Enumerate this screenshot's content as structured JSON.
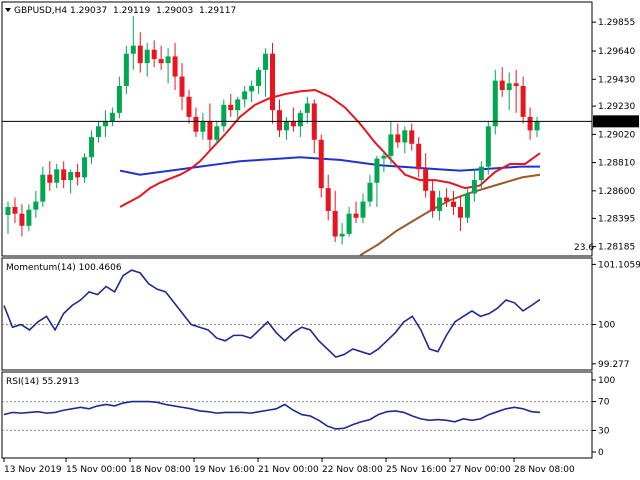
{
  "header": {
    "symbol": "GBPUSD,H4",
    "ohlc": [
      "1.29037",
      "1.29119",
      "1.29003",
      "1.29117"
    ]
  },
  "colors": {
    "bull": "#00a651",
    "bear": "#e8141f",
    "ma_fast": "#e8141f",
    "ma_mid": "#2233cc",
    "ma_slow": "#9b5a2a",
    "osc_line": "#1f2a8c",
    "price_line": "#000000",
    "current_tag_bg": "#000000"
  },
  "chart_data": [
    {
      "type": "candlestick",
      "name": "price",
      "ylim": [
        1.2813,
        1.2999
      ],
      "y_ticks": [
        "1.29855",
        "1.29640",
        "1.29430",
        "1.29230",
        "1.29020",
        "1.28810",
        "1.28600",
        "1.28395",
        "1.28185"
      ],
      "y_tick_values": [
        1.29855,
        1.2964,
        1.2943,
        1.2923,
        1.2902,
        1.2881,
        1.286,
        1.28395,
        1.28185
      ],
      "current_price": "1.29117",
      "current_value": 1.29117,
      "corner_label": "23.6",
      "candles": [
        [
          1.2842,
          1.2852,
          1.2828,
          1.2848
        ],
        [
          1.2848,
          1.2855,
          1.2836,
          1.2843
        ],
        [
          1.2843,
          1.285,
          1.2826,
          1.2834
        ],
        [
          1.2834,
          1.285,
          1.283,
          1.2846
        ],
        [
          1.2846,
          1.286,
          1.284,
          1.2852
        ],
        [
          1.2852,
          1.2878,
          1.2848,
          1.2872
        ],
        [
          1.2872,
          1.2882,
          1.286,
          1.2866
        ],
        [
          1.2866,
          1.288,
          1.2862,
          1.2876
        ],
        [
          1.2876,
          1.2882,
          1.2862,
          1.2868
        ],
        [
          1.2868,
          1.2876,
          1.2858,
          1.2874
        ],
        [
          1.2874,
          1.288,
          1.2864,
          1.287
        ],
        [
          1.287,
          1.2888,
          1.2866,
          1.2885
        ],
        [
          1.2885,
          1.2905,
          1.288,
          1.29
        ],
        [
          1.29,
          1.2912,
          1.2896,
          1.2908
        ],
        [
          1.2908,
          1.292,
          1.29,
          1.2912
        ],
        [
          1.2912,
          1.2922,
          1.2908,
          1.2918
        ],
        [
          1.2918,
          1.2945,
          1.2914,
          1.2938
        ],
        [
          1.2938,
          1.2968,
          1.2932,
          1.2962
        ],
        [
          1.2962,
          1.299,
          1.295,
          1.2968
        ],
        [
          1.2968,
          1.2978,
          1.2948,
          1.2955
        ],
        [
          1.2955,
          1.297,
          1.2945,
          1.2965
        ],
        [
          1.2965,
          1.2972,
          1.2952,
          1.2958
        ],
        [
          1.2958,
          1.2968,
          1.295,
          1.2955
        ],
        [
          1.2955,
          1.2966,
          1.294,
          1.296
        ],
        [
          1.296,
          1.297,
          1.2935,
          1.2945
        ],
        [
          1.2945,
          1.2955,
          1.292,
          1.293
        ],
        [
          1.293,
          1.2935,
          1.291,
          1.2915
        ],
        [
          1.2915,
          1.2922,
          1.29,
          1.2904
        ],
        [
          1.2904,
          1.2918,
          1.2898,
          1.2912
        ],
        [
          1.2912,
          1.2925,
          1.289,
          1.2898
        ],
        [
          1.2898,
          1.2912,
          1.2895,
          1.2908
        ],
        [
          1.2908,
          1.2928,
          1.2904,
          1.2924
        ],
        [
          1.2924,
          1.2932,
          1.2915,
          1.292
        ],
        [
          1.292,
          1.293,
          1.2912,
          1.2928
        ],
        [
          1.2928,
          1.2938,
          1.2922,
          1.2934
        ],
        [
          1.2934,
          1.2942,
          1.2926,
          1.2938
        ],
        [
          1.2938,
          1.2952,
          1.2932,
          1.295
        ],
        [
          1.295,
          1.2966,
          1.293,
          1.2962
        ],
        [
          1.2962,
          1.297,
          1.291,
          1.292
        ],
        [
          1.292,
          1.2928,
          1.29,
          1.2905
        ],
        [
          1.2905,
          1.2915,
          1.2898,
          1.2912
        ],
        [
          1.2912,
          1.2922,
          1.2904,
          1.2908
        ],
        [
          1.2908,
          1.292,
          1.29,
          1.2918
        ],
        [
          1.2918,
          1.293,
          1.291,
          1.2925
        ],
        [
          1.2925,
          1.2928,
          1.2888,
          1.2898
        ],
        [
          1.2898,
          1.2902,
          1.2855,
          1.2862
        ],
        [
          1.2862,
          1.2872,
          1.2838,
          1.2845
        ],
        [
          1.2845,
          1.286,
          1.2822,
          1.2826
        ],
        [
          1.2826,
          1.2836,
          1.282,
          1.2828
        ],
        [
          1.2828,
          1.2848,
          1.2826,
          1.2843
        ],
        [
          1.2843,
          1.2852,
          1.2836,
          1.284
        ],
        [
          1.284,
          1.2858,
          1.2836,
          1.2852
        ],
        [
          1.2852,
          1.2872,
          1.2848,
          1.2866
        ],
        [
          1.2866,
          1.2886,
          1.2848,
          1.2884
        ],
        [
          1.2884,
          1.289,
          1.2874,
          1.2886
        ],
        [
          1.2886,
          1.2912,
          1.288,
          1.2902
        ],
        [
          1.2902,
          1.291,
          1.2892,
          1.2896
        ],
        [
          1.2896,
          1.2908,
          1.2888,
          1.2905
        ],
        [
          1.2905,
          1.291,
          1.289,
          1.2895
        ],
        [
          1.2895,
          1.29,
          1.287,
          1.2876
        ],
        [
          1.2876,
          1.2888,
          1.2855,
          1.286
        ],
        [
          1.286,
          1.2868,
          1.284,
          1.2845
        ],
        [
          1.2845,
          1.286,
          1.2838,
          1.2855
        ],
        [
          1.2855,
          1.2862,
          1.2848,
          1.2852
        ],
        [
          1.2852,
          1.286,
          1.2842,
          1.2848
        ],
        [
          1.2848,
          1.2856,
          1.283,
          1.284
        ],
        [
          1.284,
          1.2862,
          1.2836,
          1.2858
        ],
        [
          1.2858,
          1.2875,
          1.2852,
          1.2868
        ],
        [
          1.2868,
          1.2882,
          1.2862,
          1.2878
        ],
        [
          1.2878,
          1.2912,
          1.2872,
          1.2908
        ],
        [
          1.2908,
          1.295,
          1.2902,
          1.2942
        ],
        [
          1.2942,
          1.2952,
          1.293,
          1.2935
        ],
        [
          1.2935,
          1.2948,
          1.292,
          1.294
        ],
        [
          1.294,
          1.295,
          1.2918,
          1.2938
        ],
        [
          1.2938,
          1.2945,
          1.291,
          1.2915
        ],
        [
          1.2915,
          1.2922,
          1.2898,
          1.2905
        ],
        [
          1.2905,
          1.2915,
          1.29,
          1.29117
        ]
      ],
      "ma_fast": [
        1.2848,
        1.2852,
        1.2856,
        1.2862,
        1.2866,
        1.2869,
        1.2872,
        1.2876,
        1.2882,
        1.289,
        1.2902,
        1.2915,
        1.2924,
        1.2929,
        1.2932,
        1.2934,
        1.2935,
        1.293,
        1.2922,
        1.291,
        1.2896,
        1.2884,
        1.2872,
        1.2868,
        1.2868,
        1.2866,
        1.2862,
        1.2864,
        1.2874,
        1.288,
        1.288,
        1.2888
      ],
      "ma_fast_x": [
        60,
        70,
        80,
        90,
        100,
        110,
        120,
        130,
        140,
        150,
        165,
        180,
        195,
        210,
        225,
        240,
        255,
        270,
        285,
        300,
        315,
        330,
        345,
        360,
        375,
        390,
        405,
        420,
        435,
        450,
        465,
        480
      ],
      "ma_mid": [
        1.2875,
        1.2872,
        1.2874,
        1.2876,
        1.2878,
        1.288,
        1.2882,
        1.2883,
        1.2884,
        1.2885,
        1.2884,
        1.2883,
        1.2881,
        1.2879,
        1.2878,
        1.2877,
        1.2876,
        1.2875,
        1.2876,
        1.2877,
        1.2878,
        1.2878
      ],
      "ma_mid_x": [
        0,
        20,
        40,
        60,
        80,
        100,
        120,
        140,
        160,
        180,
        200,
        220,
        240,
        260,
        280,
        300,
        320,
        340,
        360,
        380,
        400,
        420
      ],
      "ma_slow": [
        1.2812,
        1.282,
        1.283,
        1.2838,
        1.2846,
        1.2853,
        1.2858,
        1.2862,
        1.2866,
        1.287,
        1.2872
      ],
      "ma_slow_x": [
        0,
        10,
        20,
        30,
        40,
        50,
        60,
        70,
        80,
        90,
        100
      ]
    },
    {
      "type": "line",
      "name": "momentum",
      "label": "Momentum(14) 100.4606",
      "ylim": [
        99.2,
        101.15
      ],
      "y_ticks": [
        "101.1059",
        "100",
        "99.277"
      ],
      "y_tick_values": [
        101.1059,
        100.0,
        99.277
      ],
      "reference_level": 100.0,
      "values": [
        100.35,
        99.95,
        100.0,
        99.9,
        100.05,
        100.15,
        99.9,
        100.2,
        100.35,
        100.45,
        100.6,
        100.55,
        100.7,
        100.6,
        100.9,
        101.0,
        100.95,
        100.75,
        100.65,
        100.6,
        100.4,
        100.2,
        100.0,
        99.95,
        99.9,
        99.75,
        99.7,
        99.8,
        99.8,
        99.75,
        99.9,
        100.05,
        99.85,
        99.7,
        99.85,
        99.95,
        99.9,
        99.7,
        99.55,
        99.4,
        99.45,
        99.55,
        99.5,
        99.45,
        99.55,
        99.7,
        99.85,
        100.05,
        100.15,
        99.9,
        99.55,
        99.5,
        99.8,
        100.05,
        100.15,
        100.25,
        100.15,
        100.2,
        100.3,
        100.45,
        100.4,
        100.25,
        100.35,
        100.46
      ],
      "x_index_span": 64
    },
    {
      "type": "line",
      "name": "rsi",
      "label": "RSI(14) 55.2913",
      "ylim": [
        0,
        100
      ],
      "y_ticks": [
        "100",
        "70",
        "30",
        "0"
      ],
      "y_tick_values": [
        100,
        70,
        30,
        0
      ],
      "levels": [
        70,
        30
      ],
      "values": [
        52,
        55,
        54,
        55,
        56,
        54,
        55,
        58,
        60,
        62,
        60,
        64,
        66,
        64,
        68,
        70,
        70,
        70,
        69,
        66,
        64,
        62,
        60,
        57,
        56,
        54,
        55,
        55,
        55,
        54,
        56,
        58,
        60,
        66,
        58,
        52,
        50,
        44,
        36,
        32,
        33,
        38,
        42,
        45,
        52,
        56,
        57,
        55,
        50,
        46,
        44,
        45,
        44,
        42,
        46,
        44,
        46,
        52,
        56,
        60,
        62,
        60,
        56,
        55
      ],
      "x_index_span": 64
    }
  ],
  "x_axis": {
    "labels": [
      "13 Nov 2019",
      "15 Nov 00:00",
      "18 Nov 08:00",
      "19 Nov 16:00",
      "21 Nov 00:00",
      "22 Nov 08:00",
      "25 Nov 16:00",
      "27 Nov 00:00",
      "28 Nov 08:00"
    ]
  }
}
